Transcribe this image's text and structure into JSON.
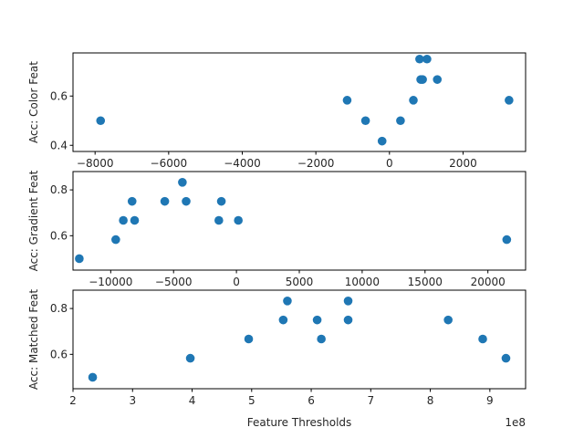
{
  "chart_data": [
    {
      "type": "scatter",
      "title": "",
      "xlabel": "",
      "ylabel": "Acc: Color Feat",
      "xlim": [
        -8600,
        3700
      ],
      "ylim": [
        0.375,
        0.775
      ],
      "xticks": [
        -8000,
        -6000,
        -4000,
        -2000,
        0,
        2000
      ],
      "xtick_labels": [
        "−8000",
        "−6000",
        "−4000",
        "−2000",
        "0",
        "2000"
      ],
      "yticks": [
        0.4,
        0.6
      ],
      "ytick_labels": [
        "0.4",
        "0.6"
      ],
      "color": "#1f77b4",
      "points": [
        {
          "x": -7850,
          "y": 0.5
        },
        {
          "x": -1150,
          "y": 0.583
        },
        {
          "x": -650,
          "y": 0.5
        },
        {
          "x": -200,
          "y": 0.417
        },
        {
          "x": 300,
          "y": 0.5
        },
        {
          "x": 650,
          "y": 0.583
        },
        {
          "x": 820,
          "y": 0.75
        },
        {
          "x": 850,
          "y": 0.667
        },
        {
          "x": 900,
          "y": 0.667
        },
        {
          "x": 1020,
          "y": 0.75
        },
        {
          "x": 1300,
          "y": 0.667
        },
        {
          "x": 3250,
          "y": 0.583
        }
      ]
    },
    {
      "type": "scatter",
      "title": "",
      "xlabel": "",
      "ylabel": "Acc: Gradient Feat",
      "xlim": [
        -13000,
        23000
      ],
      "ylim": [
        0.45,
        0.88
      ],
      "xticks": [
        -10000,
        -5000,
        0,
        5000,
        10000,
        15000,
        20000
      ],
      "xtick_labels": [
        "−10000",
        "−5000",
        "0",
        "5000",
        "10000",
        "15000",
        "20000"
      ],
      "yticks": [
        0.6,
        0.8
      ],
      "ytick_labels": [
        "0.6",
        "0.8"
      ],
      "color": "#1f77b4",
      "points": [
        {
          "x": -12500,
          "y": 0.5
        },
        {
          "x": -9600,
          "y": 0.583
        },
        {
          "x": -9000,
          "y": 0.667
        },
        {
          "x": -8300,
          "y": 0.75
        },
        {
          "x": -8100,
          "y": 0.667
        },
        {
          "x": -5700,
          "y": 0.75
        },
        {
          "x": -4300,
          "y": 0.833
        },
        {
          "x": -4000,
          "y": 0.75
        },
        {
          "x": -1400,
          "y": 0.667
        },
        {
          "x": -1200,
          "y": 0.75
        },
        {
          "x": 150,
          "y": 0.667
        },
        {
          "x": 21500,
          "y": 0.583
        }
      ]
    },
    {
      "type": "scatter",
      "title": "",
      "xlabel": "Feature Thresholds",
      "ylabel": "Acc: Matched Feat",
      "x_offset_label": "1e8",
      "xlim": [
        2.0,
        9.6
      ],
      "ylim": [
        0.45,
        0.88
      ],
      "xticks": [
        2,
        3,
        4,
        5,
        6,
        7,
        8,
        9
      ],
      "xtick_labels": [
        "2",
        "3",
        "4",
        "5",
        "6",
        "7",
        "8",
        "9"
      ],
      "yticks": [
        0.6,
        0.8
      ],
      "ytick_labels": [
        "0.6",
        "0.8"
      ],
      "color": "#1f77b4",
      "points": [
        {
          "x": 2.33,
          "y": 0.5
        },
        {
          "x": 3.97,
          "y": 0.583
        },
        {
          "x": 4.95,
          "y": 0.667
        },
        {
          "x": 5.53,
          "y": 0.75
        },
        {
          "x": 5.6,
          "y": 0.833
        },
        {
          "x": 6.1,
          "y": 0.75
        },
        {
          "x": 6.17,
          "y": 0.667
        },
        {
          "x": 6.62,
          "y": 0.833
        },
        {
          "x": 6.62,
          "y": 0.75
        },
        {
          "x": 8.3,
          "y": 0.75
        },
        {
          "x": 8.88,
          "y": 0.667
        },
        {
          "x": 9.27,
          "y": 0.583
        }
      ]
    }
  ]
}
